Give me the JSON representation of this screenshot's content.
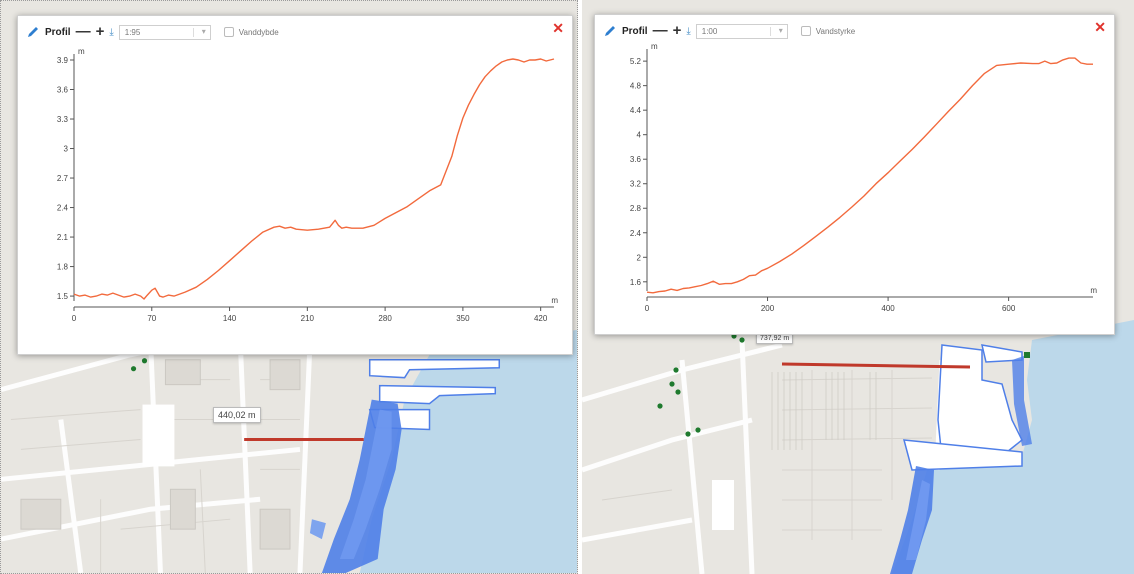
{
  "left_panel": {
    "toolbar": {
      "title": "Profil",
      "zoom_out": "—",
      "zoom_in": "+",
      "download": "⤓",
      "scale_value": "1:95",
      "checkbox_label": "Vanddybde"
    },
    "close": "✕",
    "measure_label": "440,02 m"
  },
  "right_panel": {
    "toolbar": {
      "title": "Profil",
      "zoom_out": "—",
      "zoom_in": "+",
      "download": "⤓",
      "scale_value": "1:00",
      "checkbox_label": "Vandstyrke"
    },
    "close": "✕",
    "measure_label": "737,92 m"
  },
  "colors": {
    "line": "#f26a3d",
    "water": "#b9d7ea",
    "flood": "#4f7fe8",
    "measure_line": "#c0392b"
  },
  "chart_data": [
    {
      "type": "line",
      "xlabel": "m",
      "ylabel": "m",
      "xlim": [
        0,
        432
      ],
      "ylim": [
        1.45,
        3.9
      ],
      "x_ticks": [
        0,
        70,
        140,
        210,
        280,
        350,
        420
      ],
      "y_ticks": [
        1.5,
        1.8,
        2.1,
        2.4,
        2.7,
        3,
        3.3,
        3.6,
        3.9
      ],
      "x_tick_labels": [
        "0",
        "70",
        "140",
        "210",
        "280",
        "350",
        "420"
      ],
      "y_tick_labels": [
        "1.5",
        "1.8",
        "2.1",
        "2.4",
        "2.7",
        "3",
        "3.3",
        "3.6",
        "3.9"
      ],
      "series": [
        {
          "x": [
            0,
            5,
            10,
            15,
            20,
            25,
            30,
            35,
            40,
            45,
            50,
            55,
            60,
            63,
            66,
            70,
            73,
            77,
            80,
            85,
            90,
            95,
            100,
            110,
            120,
            130,
            140,
            150,
            160,
            170,
            180,
            185,
            190,
            195,
            200,
            210,
            220,
            230,
            235,
            238,
            241,
            245,
            250,
            260,
            270,
            280,
            290,
            300,
            310,
            320,
            330,
            340,
            345,
            350,
            355,
            360,
            365,
            370,
            375,
            380,
            385,
            390,
            395,
            400,
            405,
            410,
            415,
            420,
            425,
            432
          ],
          "y": [
            1.52,
            1.5,
            1.51,
            1.49,
            1.5,
            1.52,
            1.51,
            1.53,
            1.51,
            1.49,
            1.5,
            1.52,
            1.5,
            1.47,
            1.51,
            1.56,
            1.58,
            1.5,
            1.49,
            1.51,
            1.5,
            1.52,
            1.54,
            1.59,
            1.67,
            1.76,
            1.86,
            1.96,
            2.06,
            2.15,
            2.2,
            2.21,
            2.19,
            2.2,
            2.18,
            2.17,
            2.18,
            2.2,
            2.27,
            2.22,
            2.19,
            2.2,
            2.19,
            2.19,
            2.22,
            2.29,
            2.35,
            2.41,
            2.49,
            2.57,
            2.63,
            2.92,
            3.13,
            3.31,
            3.44,
            3.55,
            3.65,
            3.73,
            3.79,
            3.84,
            3.88,
            3.9,
            3.91,
            3.9,
            3.88,
            3.9,
            3.9,
            3.91,
            3.89,
            3.91
          ]
        }
      ]
    },
    {
      "type": "line",
      "xlabel": "m",
      "ylabel": "m",
      "xlim": [
        0,
        740
      ],
      "ylim": [
        1.45,
        5.3
      ],
      "x_ticks": [
        0,
        200,
        400,
        600
      ],
      "y_ticks": [
        1.6,
        2,
        2.4,
        2.8,
        3.2,
        3.6,
        4,
        4.4,
        4.8,
        5.2
      ],
      "x_tick_labels": [
        "0",
        "200",
        "400",
        "600"
      ],
      "y_tick_labels": [
        "1.6",
        "2",
        "2.4",
        "2.8",
        "3.2",
        "3.6",
        "4",
        "4.4",
        "4.8",
        "5.2"
      ],
      "series": [
        {
          "x": [
            0,
            10,
            20,
            30,
            40,
            50,
            60,
            70,
            80,
            90,
            100,
            110,
            120,
            130,
            140,
            150,
            160,
            170,
            180,
            190,
            200,
            220,
            240,
            260,
            280,
            300,
            320,
            340,
            360,
            380,
            400,
            420,
            440,
            460,
            480,
            500,
            520,
            540,
            560,
            580,
            600,
            620,
            640,
            650,
            660,
            670,
            680,
            690,
            700,
            710,
            720,
            730,
            740
          ],
          "y": [
            1.43,
            1.42,
            1.44,
            1.45,
            1.48,
            1.46,
            1.49,
            1.5,
            1.52,
            1.54,
            1.57,
            1.61,
            1.56,
            1.57,
            1.57,
            1.6,
            1.64,
            1.7,
            1.71,
            1.78,
            1.82,
            1.93,
            2.05,
            2.19,
            2.34,
            2.49,
            2.65,
            2.82,
            3.0,
            3.2,
            3.38,
            3.57,
            3.76,
            3.96,
            4.17,
            4.38,
            4.58,
            4.8,
            5.0,
            5.13,
            5.15,
            5.17,
            5.16,
            5.16,
            5.2,
            5.16,
            5.17,
            5.22,
            5.25,
            5.25,
            5.17,
            5.15,
            5.15
          ]
        }
      ]
    }
  ]
}
